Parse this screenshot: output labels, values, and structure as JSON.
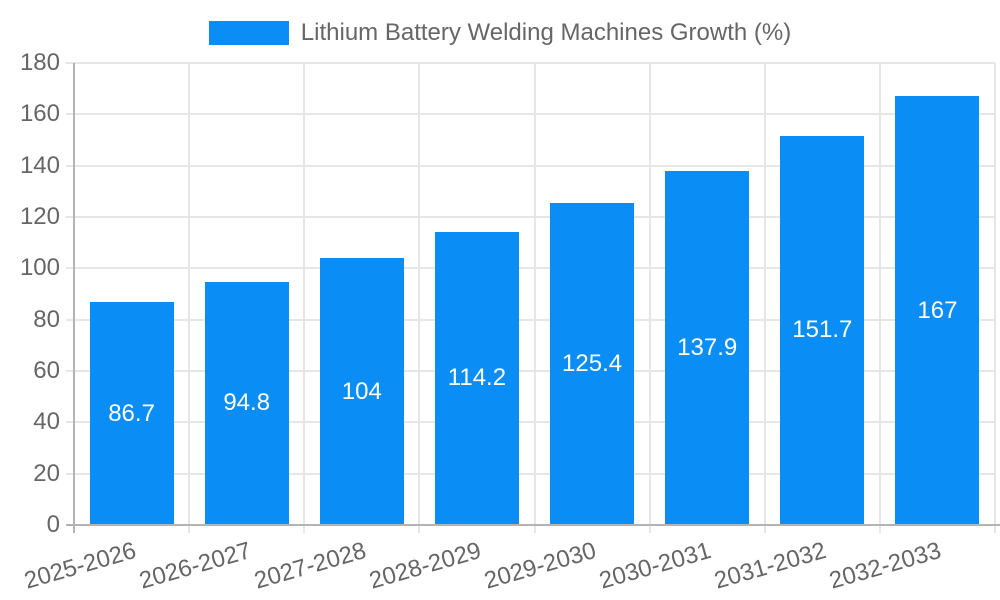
{
  "legend": {
    "label": "Lithium Battery Welding Machines Growth (%)"
  },
  "chart_data": {
    "type": "bar",
    "title": "Lithium Battery Welding Machines Growth (%)",
    "categories": [
      "2025-2026",
      "2026-2027",
      "2027-2028",
      "2028-2029",
      "2029-2030",
      "2030-2031",
      "2031-2032",
      "2032-2033"
    ],
    "values": [
      86.7,
      94.8,
      104,
      114.2,
      125.4,
      137.9,
      151.7,
      167
    ],
    "value_labels": [
      "86.7",
      "94.8",
      "104",
      "114.2",
      "125.4",
      "137.9",
      "151.7",
      "167"
    ],
    "xlabel": "",
    "ylabel": "",
    "ylim": [
      0,
      180
    ],
    "ytick_step": 20,
    "ytick_labels": [
      "0",
      "20",
      "40",
      "60",
      "80",
      "100",
      "120",
      "140",
      "160",
      "180"
    ],
    "grid": "both",
    "legend_position": "top-center",
    "bar_label_position": "center",
    "x_label_rotation_deg": -16
  },
  "style": {
    "bar_color": "#0a8ef5",
    "grid_color": "#e6e6e6",
    "axis_color": "#b3b3b3",
    "text_color": "#666666",
    "value_label_color": "#ffffff",
    "background": "#ffffff"
  }
}
